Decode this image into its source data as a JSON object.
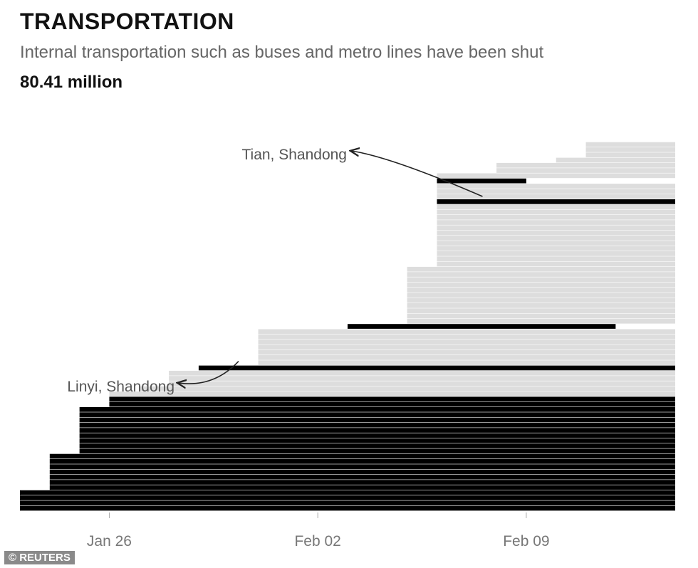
{
  "header": {
    "title": "TRANSPORTATION",
    "subtitle": "Internal transportation such as buses and metro lines have been shut",
    "headline": "80.41 million"
  },
  "credit": "© REUTERS",
  "chart_data": {
    "type": "bar",
    "orientation": "horizontal",
    "x_axis": {
      "type": "date",
      "range": [
        "2020-01-23",
        "2020-02-14"
      ],
      "ticks": [
        "Jan 26",
        "Feb 02",
        "Feb 09"
      ],
      "tick_dates": [
        "2020-01-26",
        "2020-02-02",
        "2020-02-09"
      ]
    },
    "grid": false,
    "colors": {
      "highlight": "#000000",
      "other": "#dddddd",
      "divider": "#ffffff"
    },
    "bars": [
      {
        "start": "2020-01-23",
        "end": "2020-02-14",
        "highlight": true
      },
      {
        "start": "2020-01-23",
        "end": "2020-02-14",
        "highlight": true
      },
      {
        "start": "2020-01-23",
        "end": "2020-02-14",
        "highlight": true
      },
      {
        "start": "2020-01-23",
        "end": "2020-02-14",
        "highlight": true
      },
      {
        "start": "2020-01-24",
        "end": "2020-02-14",
        "highlight": true
      },
      {
        "start": "2020-01-24",
        "end": "2020-02-14",
        "highlight": true
      },
      {
        "start": "2020-01-24",
        "end": "2020-02-14",
        "highlight": true
      },
      {
        "start": "2020-01-24",
        "end": "2020-02-14",
        "highlight": true
      },
      {
        "start": "2020-01-24",
        "end": "2020-02-14",
        "highlight": true
      },
      {
        "start": "2020-01-24",
        "end": "2020-02-14",
        "highlight": true
      },
      {
        "start": "2020-01-24",
        "end": "2020-02-14",
        "highlight": true
      },
      {
        "start": "2020-01-25",
        "end": "2020-02-14",
        "highlight": true
      },
      {
        "start": "2020-01-25",
        "end": "2020-02-14",
        "highlight": true
      },
      {
        "start": "2020-01-25",
        "end": "2020-02-14",
        "highlight": true
      },
      {
        "start": "2020-01-25",
        "end": "2020-02-14",
        "highlight": true
      },
      {
        "start": "2020-01-25",
        "end": "2020-02-14",
        "highlight": true
      },
      {
        "start": "2020-01-25",
        "end": "2020-02-14",
        "highlight": true
      },
      {
        "start": "2020-01-25",
        "end": "2020-02-14",
        "highlight": true
      },
      {
        "start": "2020-01-25",
        "end": "2020-02-14",
        "highlight": true
      },
      {
        "start": "2020-01-25",
        "end": "2020-02-14",
        "highlight": true
      },
      {
        "start": "2020-01-26",
        "end": "2020-02-14",
        "highlight": true
      },
      {
        "start": "2020-01-26",
        "end": "2020-02-14",
        "highlight": true
      },
      {
        "start": "2020-01-26",
        "end": "2020-02-14",
        "highlight": false
      },
      {
        "start": "2020-01-27",
        "end": "2020-02-14",
        "highlight": false
      },
      {
        "start": "2020-01-28",
        "end": "2020-02-14",
        "highlight": false
      },
      {
        "start": "2020-01-28",
        "end": "2020-02-14",
        "highlight": false
      },
      {
        "start": "2020-01-28",
        "end": "2020-02-14",
        "highlight": false
      },
      {
        "start": "2020-01-29",
        "end": "2020-02-14",
        "highlight": true,
        "label": "Linyi, Shandong"
      },
      {
        "start": "2020-01-31",
        "end": "2020-02-14",
        "highlight": false
      },
      {
        "start": "2020-01-31",
        "end": "2020-02-14",
        "highlight": false
      },
      {
        "start": "2020-01-31",
        "end": "2020-02-14",
        "highlight": false
      },
      {
        "start": "2020-01-31",
        "end": "2020-02-14",
        "highlight": false
      },
      {
        "start": "2020-01-31",
        "end": "2020-02-14",
        "highlight": false
      },
      {
        "start": "2020-01-31",
        "end": "2020-02-14",
        "highlight": false
      },
      {
        "start": "2020-01-31",
        "end": "2020-02-14",
        "highlight": false
      },
      {
        "start": "2020-02-03",
        "end": "2020-02-12",
        "highlight": true
      },
      {
        "start": "2020-02-05",
        "end": "2020-02-14",
        "highlight": false
      },
      {
        "start": "2020-02-05",
        "end": "2020-02-14",
        "highlight": false
      },
      {
        "start": "2020-02-05",
        "end": "2020-02-14",
        "highlight": false
      },
      {
        "start": "2020-02-05",
        "end": "2020-02-14",
        "highlight": false
      },
      {
        "start": "2020-02-05",
        "end": "2020-02-14",
        "highlight": false
      },
      {
        "start": "2020-02-05",
        "end": "2020-02-14",
        "highlight": false
      },
      {
        "start": "2020-02-05",
        "end": "2020-02-14",
        "highlight": false
      },
      {
        "start": "2020-02-05",
        "end": "2020-02-14",
        "highlight": false
      },
      {
        "start": "2020-02-05",
        "end": "2020-02-14",
        "highlight": false
      },
      {
        "start": "2020-02-05",
        "end": "2020-02-14",
        "highlight": false
      },
      {
        "start": "2020-02-05",
        "end": "2020-02-14",
        "highlight": false
      },
      {
        "start": "2020-02-06",
        "end": "2020-02-14",
        "highlight": false
      },
      {
        "start": "2020-02-06",
        "end": "2020-02-14",
        "highlight": false
      },
      {
        "start": "2020-02-06",
        "end": "2020-02-14",
        "highlight": false
      },
      {
        "start": "2020-02-06",
        "end": "2020-02-14",
        "highlight": false
      },
      {
        "start": "2020-02-06",
        "end": "2020-02-14",
        "highlight": false
      },
      {
        "start": "2020-02-06",
        "end": "2020-02-14",
        "highlight": false
      },
      {
        "start": "2020-02-06",
        "end": "2020-02-14",
        "highlight": false
      },
      {
        "start": "2020-02-06",
        "end": "2020-02-14",
        "highlight": false
      },
      {
        "start": "2020-02-06",
        "end": "2020-02-14",
        "highlight": false
      },
      {
        "start": "2020-02-06",
        "end": "2020-02-14",
        "highlight": false
      },
      {
        "start": "2020-02-06",
        "end": "2020-02-14",
        "highlight": false
      },
      {
        "start": "2020-02-06",
        "end": "2020-02-14",
        "highlight": false
      },
      {
        "start": "2020-02-06",
        "end": "2020-02-14",
        "highlight": true,
        "label": "Tian, Shandong"
      },
      {
        "start": "2020-02-06",
        "end": "2020-02-14",
        "highlight": false
      },
      {
        "start": "2020-02-06",
        "end": "2020-02-14",
        "highlight": false
      },
      {
        "start": "2020-02-06",
        "end": "2020-02-14",
        "highlight": false
      },
      {
        "start": "2020-02-06",
        "end": "2020-02-09",
        "highlight": true
      },
      {
        "start": "2020-02-06",
        "end": "2020-02-14",
        "highlight": false
      },
      {
        "start": "2020-02-08",
        "end": "2020-02-14",
        "highlight": false
      },
      {
        "start": "2020-02-08",
        "end": "2020-02-14",
        "highlight": false
      },
      {
        "start": "2020-02-10",
        "end": "2020-02-14",
        "highlight": false
      },
      {
        "start": "2020-02-11",
        "end": "2020-02-14",
        "highlight": false
      },
      {
        "start": "2020-02-11",
        "end": "2020-02-14",
        "highlight": false
      },
      {
        "start": "2020-02-11",
        "end": "2020-02-14",
        "highlight": false
      }
    ],
    "annotations": [
      {
        "text": "Linyi, Shandong"
      },
      {
        "text": "Tian, Shandong"
      }
    ]
  }
}
